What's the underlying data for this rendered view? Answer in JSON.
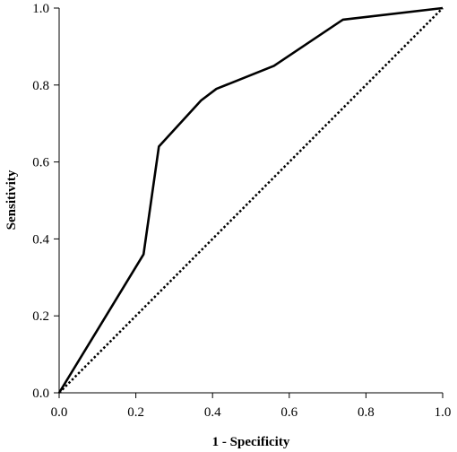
{
  "chart_data": {
    "type": "line",
    "title": "",
    "xlabel": "1 - Specificity",
    "ylabel": "Sensitivity",
    "xlim": [
      0,
      1
    ],
    "ylim": [
      0,
      1
    ],
    "x_ticks": [
      "0.0",
      "0.2",
      "0.4",
      "0.6",
      "0.8",
      "1.0"
    ],
    "y_ticks": [
      "0.0",
      "0.2",
      "0.4",
      "0.6",
      "0.8",
      "1.0"
    ],
    "grid": false,
    "legend": "none",
    "series": [
      {
        "style": "solid",
        "color": "#000000",
        "x": [
          0.0,
          0.22,
          0.26,
          0.37,
          0.41,
          0.56,
          0.74,
          1.0
        ],
        "y": [
          0.0,
          0.36,
          0.64,
          0.76,
          0.79,
          0.85,
          0.97,
          1.0
        ]
      },
      {
        "style": "dotted",
        "color": "#000000",
        "x": [
          0.0,
          1.0
        ],
        "y": [
          0.0,
          1.0
        ]
      }
    ]
  }
}
